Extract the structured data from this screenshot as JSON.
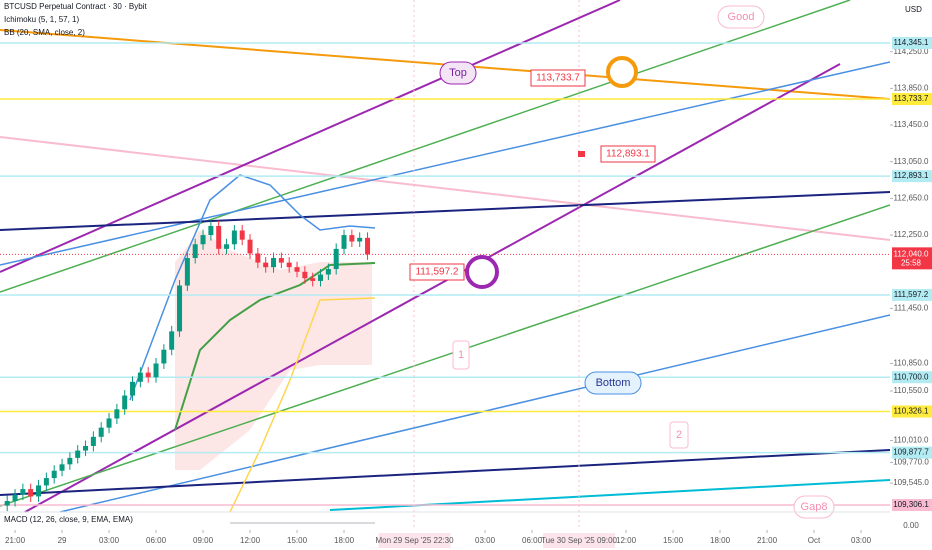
{
  "chart_data": {
    "type": "candlestick",
    "title": "BTCUSD Perpetual Contract · 30 · Bybit",
    "indicators": [
      "Ichimoku (5, 1, 57, 1)",
      "BB (20, SMA, close, 2)"
    ],
    "y_label": "USD",
    "up_color": "#089981",
    "down_color": "#f23645",
    "x": [
      -0.5,
      0,
      0.5,
      1,
      1.5,
      2,
      2.5,
      3,
      3.5,
      4,
      4.5,
      5,
      5.5,
      6,
      6.5,
      7,
      7.5,
      8,
      8.5,
      9,
      9.5,
      10,
      10.5,
      11,
      11.5,
      12,
      12.5,
      13,
      13.5,
      14,
      14.5,
      15,
      15.5,
      16,
      16.5,
      17,
      17.5,
      18,
      18.5,
      19,
      19.5,
      20,
      20.5,
      21,
      21.5,
      22,
      22.5
    ],
    "open": [
      109300,
      109350,
      109420,
      109480,
      109400,
      109520,
      109600,
      109680,
      109750,
      109820,
      109900,
      109950,
      110050,
      110150,
      110250,
      110350,
      110500,
      110650,
      110750,
      110700,
      110850,
      111000,
      111200,
      111700,
      112000,
      112150,
      112250,
      112350,
      112100,
      112150,
      112300,
      112200,
      112050,
      111950,
      111900,
      112000,
      111950,
      111900,
      111850,
      111780,
      111750,
      111820,
      111880,
      112100,
      112250,
      112180,
      112220
    ],
    "high": [
      109410,
      109480,
      109540,
      109540,
      109580,
      109660,
      109740,
      109810,
      109880,
      109960,
      110010,
      110110,
      110210,
      110310,
      110410,
      110560,
      110710,
      110810,
      110810,
      110910,
      111060,
      111260,
      111760,
      112060,
      112210,
      112310,
      112410,
      112410,
      112210,
      112360,
      112360,
      112260,
      112110,
      112010,
      112060,
      112060,
      112010,
      111960,
      111910,
      111840,
      111880,
      111940,
      112160,
      112310,
      112310,
      112280,
      112280
    ],
    "low": [
      109240,
      109290,
      109360,
      109340,
      109340,
      109460,
      109540,
      109620,
      109690,
      109760,
      109840,
      109890,
      109990,
      110090,
      110190,
      110290,
      110440,
      110590,
      110640,
      110640,
      110790,
      110940,
      111140,
      111640,
      111940,
      112090,
      112190,
      112040,
      112040,
      112090,
      112140,
      111990,
      111890,
      111840,
      111840,
      111890,
      111840,
      111790,
      111720,
      111690,
      111690,
      111760,
      111820,
      112040,
      112120,
      112120,
      111980
    ],
    "close": [
      109350,
      109420,
      109480,
      109400,
      109520,
      109600,
      109680,
      109750,
      109820,
      109900,
      109950,
      110050,
      110150,
      110250,
      110350,
      110500,
      110650,
      110750,
      110700,
      110850,
      111000,
      111200,
      111700,
      112000,
      112150,
      112250,
      112350,
      112100,
      112150,
      112300,
      112200,
      112050,
      111950,
      111900,
      112000,
      111950,
      111900,
      111850,
      111780,
      111750,
      111820,
      111880,
      112100,
      112250,
      112180,
      112220,
      112040
    ],
    "xlim": [
      -0.96,
      55.85
    ],
    "xticks": [
      {
        "value": 0,
        "label": "21:00"
      },
      {
        "value": 3,
        "label": "29"
      },
      {
        "value": 6,
        "label": "03:00"
      },
      {
        "value": 9,
        "label": "06:00"
      },
      {
        "value": 12,
        "label": "09:00"
      },
      {
        "value": 15,
        "label": "12:00"
      },
      {
        "value": 18,
        "label": "15:00"
      },
      {
        "value": 21,
        "label": "18:00"
      },
      {
        "value": 30,
        "label": "03:00"
      },
      {
        "value": 33,
        "label": "06:00"
      },
      {
        "value": 39,
        "label": "12:00"
      },
      {
        "value": 42,
        "label": "15:00"
      },
      {
        "value": 45,
        "label": "18:00"
      },
      {
        "value": 48,
        "label": "21:00"
      },
      {
        "value": 51,
        "label": "Oct"
      },
      {
        "value": 54,
        "label": "03:00"
      }
    ],
    "x_markers": [
      {
        "value": 25.5,
        "label": "Mon 29 Sep '25  22:30"
      },
      {
        "value": 36,
        "label": "Tue 30 Sep '25  09:00"
      }
    ],
    "ylim": [
      109230,
      114814
    ],
    "yticks": [
      {
        "value": 114250,
        "label": "114,250.0"
      },
      {
        "value": 113850,
        "label": "113,850.0"
      },
      {
        "value": 113450,
        "label": "113,450.0"
      },
      {
        "value": 113050,
        "label": "113,050.0"
      },
      {
        "value": 112650,
        "label": "112,650.0"
      },
      {
        "value": 112250,
        "label": "112,250.0"
      },
      {
        "value": 111450,
        "label": "111,450.0"
      },
      {
        "value": 110850,
        "label": "110,850.0"
      },
      {
        "value": 110550,
        "label": "110,550.0"
      },
      {
        "value": 110010,
        "label": "110,010.0"
      },
      {
        "value": 109770,
        "label": "109,770.0"
      },
      {
        "value": 109545,
        "label": "109,545.0"
      }
    ],
    "levels": [
      {
        "value": 114345.1,
        "label": "114,345.1",
        "color": "#b2ebf2"
      },
      {
        "value": 113733.7,
        "label": "113,733.7",
        "color": "#ffeb3b"
      },
      {
        "value": 112893.1,
        "label": "112,893.1",
        "color": "#b2ebf2"
      },
      {
        "value": 111597.2,
        "label": "111,597.2",
        "color": "#b2ebf2"
      },
      {
        "value": 110700.0,
        "label": "110,700.0",
        "color": "#b2ebf2"
      },
      {
        "value": 110326.1,
        "label": "110,326.1",
        "color": "#ffeb3b"
      },
      {
        "value": 109877.7,
        "label": "109,877.7",
        "color": "#b2ebf2"
      },
      {
        "value": 109306.1,
        "label": "109,306.1",
        "color": "#f8bbd0"
      }
    ],
    "current_price": {
      "value": 112040.0,
      "label": "112,040.0",
      "countdown": "25:58",
      "color": "#f23645"
    },
    "annotations": [
      "Good",
      "Top",
      "Bottom",
      "Gap8",
      "1",
      "2",
      "113,733.7",
      "112,893.1",
      "111,597.2"
    ],
    "macd": {
      "title": "MACD (12, 26, close, 9, EMA, EMA)",
      "yticks": [
        {
          "value": 0,
          "label": "0.00"
        }
      ]
    }
  }
}
